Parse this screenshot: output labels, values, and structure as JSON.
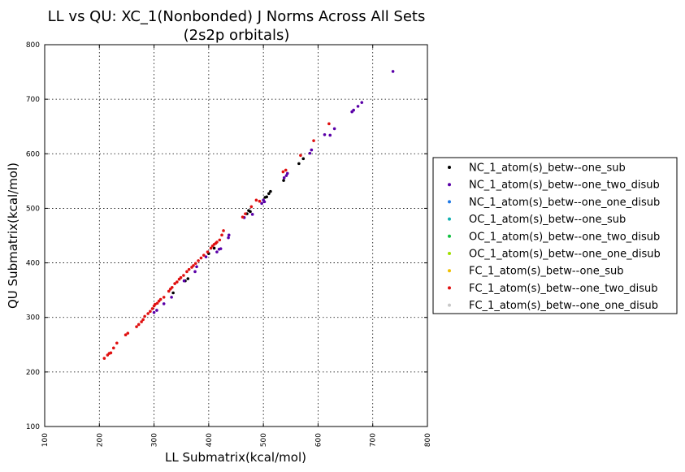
{
  "chart_data": {
    "type": "scatter",
    "title": "LL vs QU: XC_1(Nonbonded) J Norms Across All Sets",
    "subtitle": "(2s2p orbitals)",
    "xlabel": "LL Submatrix(kcal/mol)",
    "ylabel": "QU Submatrix(kcal/mol)",
    "xlim": [
      100,
      800
    ],
    "ylim": [
      100,
      800
    ],
    "xticks": [
      "100",
      "200",
      "300",
      "400",
      "500",
      "600",
      "700",
      "800"
    ],
    "yticks": [
      "100",
      "200",
      "300",
      "400",
      "500",
      "600",
      "700",
      "800"
    ],
    "grid": true,
    "legend_position": "right",
    "series": [
      {
        "name": "NC_1_atom(s)_betw--one_sub",
        "color": "#000000",
        "points": [
          [
            335,
            345
          ],
          [
            357,
            367
          ],
          [
            362,
            371
          ],
          [
            400,
            417
          ],
          [
            410,
            427
          ],
          [
            470,
            490
          ],
          [
            473,
            496
          ],
          [
            476,
            494
          ],
          [
            503,
            520
          ],
          [
            506,
            521
          ],
          [
            510,
            527
          ],
          [
            513,
            531
          ],
          [
            537,
            551
          ],
          [
            565,
            582
          ],
          [
            573,
            591
          ]
        ]
      },
      {
        "name": "NC_1_atom(s)_betw--one_two_disub",
        "color": "#5a00a8",
        "points": [
          [
            300,
            309
          ],
          [
            305,
            313
          ],
          [
            318,
            325
          ],
          [
            332,
            337
          ],
          [
            355,
            367
          ],
          [
            375,
            384
          ],
          [
            378,
            393
          ],
          [
            395,
            411
          ],
          [
            415,
            420
          ],
          [
            419,
            425
          ],
          [
            422,
            426
          ],
          [
            436,
            446
          ],
          [
            437,
            451
          ],
          [
            465,
            483
          ],
          [
            480,
            489
          ],
          [
            497,
            509
          ],
          [
            500,
            515
          ],
          [
            502,
            512
          ],
          [
            538,
            556
          ],
          [
            542,
            560
          ],
          [
            544,
            564
          ],
          [
            585,
            601
          ],
          [
            588,
            607
          ],
          [
            612,
            635
          ],
          [
            622,
            634
          ],
          [
            630,
            646
          ],
          [
            662,
            677
          ],
          [
            665,
            680
          ],
          [
            673,
            687
          ],
          [
            680,
            694
          ],
          [
            737,
            751
          ]
        ]
      },
      {
        "name": "NC_1_atom(s)_betw--one_one_disub",
        "color": "#1e78e6",
        "points": []
      },
      {
        "name": "OC_1_atom(s)_betw--one_sub",
        "color": "#10b0b0",
        "points": []
      },
      {
        "name": "OC_1_atom(s)_betw--one_two_disub",
        "color": "#10c040",
        "points": []
      },
      {
        "name": "OC_1_atom(s)_betw--one_one_disub",
        "color": "#a0e000",
        "points": []
      },
      {
        "name": "FC_1_atom(s)_betw--one_sub",
        "color": "#f0c000",
        "points": []
      },
      {
        "name": "FC_1_atom(s)_betw--one_two_disub",
        "color": "#e01010",
        "points": [
          [
            209,
            225
          ],
          [
            215,
            231
          ],
          [
            218,
            234
          ],
          [
            221,
            235
          ],
          [
            226,
            244
          ],
          [
            232,
            253
          ],
          [
            248,
            268
          ],
          [
            252,
            271
          ],
          [
            268,
            283
          ],
          [
            272,
            287
          ],
          [
            277,
            292
          ],
          [
            280,
            296
          ],
          [
            283,
            302
          ],
          [
            289,
            307
          ],
          [
            293,
            311
          ],
          [
            297,
            316
          ],
          [
            300,
            321
          ],
          [
            302,
            324
          ],
          [
            306,
            326
          ],
          [
            309,
            330
          ],
          [
            312,
            333
          ],
          [
            318,
            337
          ],
          [
            327,
            348
          ],
          [
            330,
            352
          ],
          [
            333,
            355
          ],
          [
            338,
            362
          ],
          [
            342,
            365
          ],
          [
            346,
            370
          ],
          [
            349,
            373
          ],
          [
            354,
            377
          ],
          [
            360,
            384
          ],
          [
            364,
            388
          ],
          [
            369,
            392
          ],
          [
            372,
            395
          ],
          [
            376,
            399
          ],
          [
            381,
            404
          ],
          [
            386,
            409
          ],
          [
            391,
            414
          ],
          [
            398,
            420
          ],
          [
            404,
            427
          ],
          [
            407,
            431
          ],
          [
            410,
            434
          ],
          [
            413,
            436
          ],
          [
            415,
            438
          ],
          [
            420,
            442
          ],
          [
            424,
            451
          ],
          [
            427,
            459
          ],
          [
            462,
            484
          ],
          [
            467,
            490
          ],
          [
            478,
            503
          ],
          [
            487,
            515
          ],
          [
            493,
            513
          ],
          [
            536,
            567
          ],
          [
            541,
            570
          ],
          [
            568,
            597
          ],
          [
            592,
            624
          ],
          [
            620,
            655
          ]
        ]
      },
      {
        "name": "FC_1_atom(s)_betw--one_one_disub",
        "color": "#c8c8c8",
        "points": []
      }
    ]
  }
}
